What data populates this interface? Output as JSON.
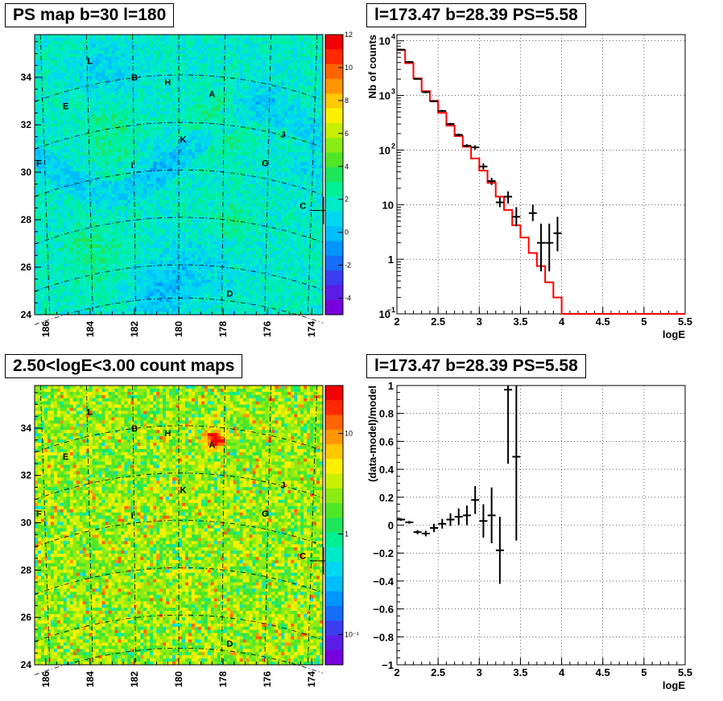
{
  "panels": {
    "ps_map": {
      "title": "PS map b=30 l=180",
      "x_ticks": [
        "186",
        "184",
        "182",
        "180",
        "178",
        "176",
        "174"
      ],
      "y_ticks": [
        "24",
        "26",
        "28",
        "30",
        "32",
        "34"
      ],
      "colorbar_ticks": [
        "12",
        "10",
        "8",
        "6",
        "4",
        "2",
        "0",
        "-2",
        "-4"
      ],
      "sources": [
        "L",
        "B",
        "H",
        "A",
        "E",
        "K",
        "J",
        "F",
        "I",
        "G",
        "C",
        "D"
      ]
    },
    "count_map": {
      "title": "2.50<logE<3.00 count maps",
      "x_ticks": [
        "186",
        "184",
        "182",
        "180",
        "178",
        "176",
        "174"
      ],
      "y_ticks": [
        "24",
        "26",
        "28",
        "30",
        "32",
        "34"
      ],
      "colorbar_ticks": [
        "10",
        "1",
        "10⁻¹"
      ],
      "sources": [
        "L",
        "B",
        "H",
        "A",
        "E",
        "K",
        "J",
        "F",
        "I",
        "G",
        "C",
        "D"
      ]
    },
    "spectrum": {
      "title": "l=173.47 b=28.39 PS=5.58"
    },
    "residual": {
      "title": "l=173.47 b=28.39 PS=5.58"
    }
  },
  "chart_data": [
    {
      "type": "heatmap",
      "title": "PS map b=30 l=180",
      "x_range": [
        186.5,
        173.5
      ],
      "y_range": [
        24,
        35.8
      ],
      "x_ticks": [
        186,
        184,
        182,
        180,
        178,
        176,
        174
      ],
      "y_ticks": [
        24,
        26,
        28,
        30,
        32,
        34
      ],
      "z_range": [
        -5,
        12
      ],
      "sources": [
        {
          "name": "L",
          "l": 184.0,
          "b": 34.7
        },
        {
          "name": "B",
          "l": 182.0,
          "b": 34.0
        },
        {
          "name": "H",
          "l": 180.5,
          "b": 33.8
        },
        {
          "name": "A",
          "l": 178.5,
          "b": 33.3
        },
        {
          "name": "E",
          "l": 185.1,
          "b": 32.8
        },
        {
          "name": "K",
          "l": 179.8,
          "b": 31.4
        },
        {
          "name": "J",
          "l": 175.3,
          "b": 31.6
        },
        {
          "name": "F",
          "l": 186.3,
          "b": 30.4
        },
        {
          "name": "I",
          "l": 182.1,
          "b": 30.3
        },
        {
          "name": "G",
          "l": 176.1,
          "b": 30.4
        },
        {
          "name": "C",
          "l": 174.4,
          "b": 28.6
        },
        {
          "name": "D",
          "l": 177.7,
          "b": 24.9
        }
      ],
      "marker": {
        "l": 173.47,
        "b": 28.39
      }
    },
    {
      "type": "heatmap",
      "title": "2.50<logE<3.00 count maps",
      "x_range": [
        186.5,
        173.5
      ],
      "y_range": [
        24,
        35.8
      ],
      "x_ticks": [
        186,
        184,
        182,
        180,
        178,
        176,
        174
      ],
      "y_ticks": [
        24,
        26,
        28,
        30,
        32,
        34
      ],
      "z_scale": "log",
      "z_range": [
        0.05,
        30
      ],
      "marker": {
        "l": 173.47,
        "b": 28.39
      }
    },
    {
      "type": "line",
      "title": "l=173.47 b=28.39 PS=5.58",
      "xlabel": "logE",
      "ylabel": "Nb of counts",
      "y_scale": "log",
      "xlim": [
        2,
        5.5
      ],
      "ylim": [
        0.1,
        13000
      ],
      "x_ticks": [
        2,
        2.5,
        3,
        3.5,
        4,
        4.5,
        5,
        5.5
      ],
      "y_ticks": [
        {
          "v": 0.1,
          "base": "10",
          "exp": "−1"
        },
        {
          "v": 1,
          "base": "1",
          "exp": ""
        },
        {
          "v": 10,
          "base": "10",
          "exp": ""
        },
        {
          "v": 100,
          "base": "10",
          "exp": "2"
        },
        {
          "v": 1000,
          "base": "10",
          "exp": "3"
        },
        {
          "v": 10000,
          "base": "10",
          "exp": "4"
        }
      ],
      "grid": true,
      "series": [
        {
          "kind": "histogram",
          "color": "#ff0000",
          "edges": [
            2.0,
            2.1,
            2.2,
            2.3,
            2.4,
            2.5,
            2.6,
            2.7,
            2.8,
            2.9,
            3.0,
            3.1,
            3.2,
            3.3,
            3.4,
            3.5,
            3.6,
            3.7,
            3.8,
            3.9,
            4.0,
            5.5
          ],
          "values": [
            6800,
            3900,
            2050,
            1200,
            800,
            480,
            280,
            180,
            115,
            70,
            42,
            25,
            14,
            8,
            4.2,
            2.5,
            1.3,
            0.75,
            0.38,
            0.2,
            0.1
          ]
        },
        {
          "kind": "points",
          "color": "#000000",
          "x": [
            2.05,
            2.15,
            2.25,
            2.35,
            2.45,
            2.55,
            2.65,
            2.75,
            2.85,
            2.95,
            3.05,
            3.15,
            3.25,
            3.35,
            3.45,
            3.65,
            3.75,
            3.85,
            3.95
          ],
          "y": [
            6900,
            4100,
            2000,
            1150,
            780,
            520,
            300,
            190,
            120,
            112,
            50,
            27,
            11,
            14,
            6,
            7,
            2,
            2,
            3
          ],
          "ylo": [
            6700,
            3950,
            1950,
            1100,
            750,
            495,
            285,
            180,
            112,
            102,
            44,
            23,
            9,
            10.5,
            4,
            5,
            0.6,
            0.6,
            1.4
          ],
          "yhi": [
            7100,
            4250,
            2050,
            1200,
            810,
            545,
            315,
            200,
            128,
            122,
            57,
            31,
            13.5,
            17.5,
            9,
            10,
            4.5,
            4.5,
            6
          ]
        }
      ]
    },
    {
      "type": "scatter",
      "title": "l=173.47 b=28.39 PS=5.58",
      "xlabel": "logE",
      "ylabel": "(data-model)/model",
      "xlim": [
        2,
        5.5
      ],
      "ylim": [
        -1,
        1
      ],
      "x_ticks": [
        2,
        2.5,
        3,
        3.5,
        4,
        4.5,
        5,
        5.5
      ],
      "y_ticks": [
        -1,
        -0.8,
        -0.6,
        -0.4,
        -0.2,
        0,
        0.2,
        0.4,
        0.6,
        0.8,
        1
      ],
      "grid": true,
      "series": [
        {
          "kind": "points",
          "color": "#000000",
          "x": [
            2.05,
            2.15,
            2.25,
            2.35,
            2.45,
            2.55,
            2.65,
            2.75,
            2.85,
            2.95,
            3.05,
            3.15,
            3.25,
            3.35,
            3.45
          ],
          "y": [
            0.04,
            0.02,
            -0.05,
            -0.06,
            -0.02,
            0.01,
            0.04,
            0.06,
            0.07,
            0.18,
            0.03,
            0.07,
            -0.18,
            0.97,
            0.49
          ],
          "yerr": [
            0.01,
            0.01,
            0.015,
            0.02,
            0.03,
            0.035,
            0.045,
            0.06,
            0.07,
            0.1,
            0.12,
            0.2,
            0.24,
            0.53,
            0.6
          ]
        }
      ]
    }
  ]
}
